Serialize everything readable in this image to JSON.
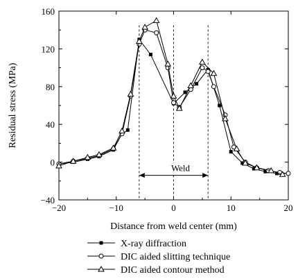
{
  "chart_data": {
    "type": "line",
    "xlabel": "Distance from weld center (mm)",
    "ylabel": "Residual stress (MPa)",
    "xlim": [
      -20,
      20
    ],
    "ylim": [
      -40,
      160
    ],
    "x_ticks": [
      -20,
      -10,
      0,
      10,
      20
    ],
    "y_ticks": [
      -40,
      0,
      40,
      80,
      120,
      160
    ],
    "grid": false,
    "legend_position": "bottom",
    "series": [
      {
        "name": "X-ray diffraction",
        "marker": "filled-square",
        "points": [
          [
            -20,
            -2
          ],
          [
            -17.5,
            0
          ],
          [
            -15,
            3
          ],
          [
            -13,
            6
          ],
          [
            -10.5,
            13
          ],
          [
            -9,
            30
          ],
          [
            -8,
            34
          ],
          [
            -6,
            130
          ],
          [
            -4,
            114
          ],
          [
            0,
            62
          ],
          [
            2,
            74
          ],
          [
            4,
            83
          ],
          [
            6,
            98
          ],
          [
            8,
            60
          ],
          [
            10,
            11
          ],
          [
            12,
            -1
          ],
          [
            14,
            -7
          ],
          [
            16,
            -10
          ],
          [
            18,
            -12
          ],
          [
            20,
            -12
          ]
        ]
      },
      {
        "name": "DIC aided slitting technique",
        "marker": "open-circle",
        "points": [
          [
            -20,
            -2
          ],
          [
            -17.5,
            1
          ],
          [
            -15,
            4
          ],
          [
            -13,
            7
          ],
          [
            -10.5,
            14
          ],
          [
            -9,
            30
          ],
          [
            -7.5,
            70
          ],
          [
            -6,
            125
          ],
          [
            -5,
            140
          ],
          [
            -3,
            137
          ],
          [
            -1,
            100
          ],
          [
            0,
            63
          ],
          [
            1,
            58
          ],
          [
            3,
            77
          ],
          [
            5,
            100
          ],
          [
            6,
            96
          ],
          [
            7,
            80
          ],
          [
            9,
            50
          ],
          [
            10.5,
            16
          ],
          [
            12.5,
            0
          ],
          [
            14.5,
            -6
          ],
          [
            16.5,
            -9
          ],
          [
            18.5,
            -11
          ],
          [
            20,
            -12
          ]
        ]
      },
      {
        "name": "DIC aided contour method",
        "marker": "open-triangle",
        "points": [
          [
            -20,
            -4
          ],
          [
            -17.5,
            1
          ],
          [
            -15,
            5
          ],
          [
            -13,
            8
          ],
          [
            -10.5,
            15
          ],
          [
            -9,
            33
          ],
          [
            -7.5,
            72
          ],
          [
            -6,
            128
          ],
          [
            -5,
            143
          ],
          [
            -3,
            150
          ],
          [
            -1,
            104
          ],
          [
            0,
            70
          ],
          [
            1,
            57
          ],
          [
            3,
            81
          ],
          [
            5,
            106
          ],
          [
            7,
            94
          ],
          [
            9,
            46
          ],
          [
            11,
            14
          ],
          [
            12.5,
            -1
          ],
          [
            14.5,
            -6
          ],
          [
            17,
            -9
          ],
          [
            19,
            -13
          ]
        ]
      }
    ],
    "annotations": [
      {
        "text": "Weld",
        "x_range": [
          -6,
          6
        ],
        "y": 0
      }
    ]
  }
}
